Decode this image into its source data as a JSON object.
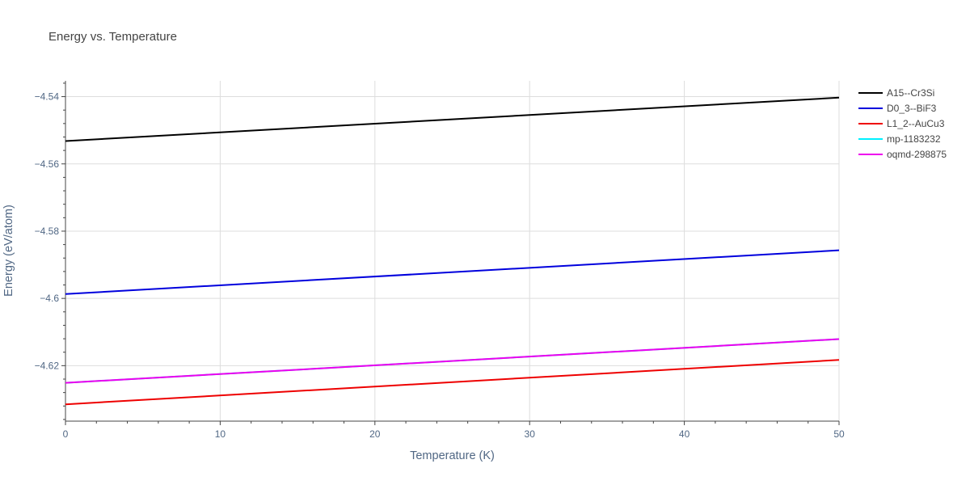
{
  "chart_data": {
    "type": "line",
    "title": "Energy vs. Temperature",
    "xlabel": "Temperature (K)",
    "ylabel": "Energy (eV/atom)",
    "xlim": [
      0,
      50
    ],
    "ylim": [
      -4.6365,
      -4.5353
    ],
    "x_ticks": [
      0,
      10,
      20,
      30,
      40,
      50
    ],
    "x_tick_labels": [
      "0",
      "10",
      "20",
      "30",
      "40",
      "50"
    ],
    "y_ticks": [
      -4.54,
      -4.56,
      -4.58,
      -4.6,
      -4.62
    ],
    "y_tick_labels": [
      "−4.54",
      "−4.56",
      "−4.58",
      "−4.6",
      "−4.62"
    ],
    "grid": true,
    "legend_position": "top-right",
    "series": [
      {
        "name": "A15--Cr3Si",
        "color": "#000000",
        "x": [
          0,
          50
        ],
        "y": [
          -4.5532,
          -4.5403
        ]
      },
      {
        "name": "D0_3--BiF3",
        "color": "#0000dd",
        "x": [
          0,
          50
        ],
        "y": [
          -4.5987,
          -4.5857
        ]
      },
      {
        "name": "L1_2--AuCu3",
        "color": "#ee0000",
        "x": [
          0,
          50
        ],
        "y": [
          -4.6315,
          -4.6183
        ]
      },
      {
        "name": "mp-1183232",
        "color": "#00f0ff",
        "x": [
          0,
          50
        ],
        "y": [
          -4.6251,
          -4.6121
        ]
      },
      {
        "name": "oqmd-298875",
        "color": "#ee00ee",
        "x": [
          0,
          50
        ],
        "y": [
          -4.6251,
          -4.6121
        ]
      }
    ]
  }
}
